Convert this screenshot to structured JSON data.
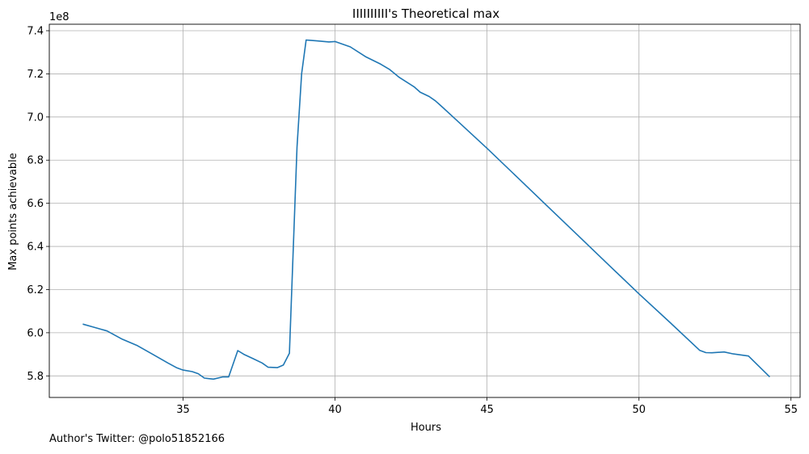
{
  "chart_data": {
    "type": "line",
    "title": "IIIIIIIIII's Theoretical max",
    "xlabel": "Hours",
    "ylabel": "Max points achievable",
    "y_offset_label": "1e8",
    "xlim": [
      30.6,
      55.3
    ],
    "ylim": [
      5.7,
      7.43
    ],
    "xticks": [
      35,
      40,
      45,
      50,
      55
    ],
    "yticks": [
      5.8,
      6.0,
      6.2,
      6.4,
      6.6,
      6.8,
      7.0,
      7.2,
      7.4
    ],
    "xtick_labels": [
      "35",
      "40",
      "45",
      "50",
      "55"
    ],
    "ytick_labels": [
      "5.8",
      "6.0",
      "6.2",
      "6.4",
      "6.6",
      "6.8",
      "7.0",
      "7.2",
      "7.4"
    ],
    "grid": true,
    "color": "#1f77b4",
    "series": [
      {
        "x": [
          31.7,
          32.0,
          32.2,
          32.5,
          33.0,
          33.5,
          34.0,
          34.5,
          34.8,
          35.0,
          35.3,
          35.5,
          35.7,
          36.0,
          36.3,
          36.5,
          36.8,
          37.0,
          37.3,
          37.6,
          37.8,
          38.1,
          38.3,
          38.5,
          38.75,
          38.9,
          39.05,
          39.4,
          39.8,
          40.0,
          40.5,
          41.0,
          41.5,
          41.8,
          42.1,
          42.6,
          42.8,
          43.1,
          43.3,
          43.5,
          44.0,
          45.0,
          46.0,
          47.0,
          48.0,
          49.0,
          50.0,
          51.0,
          52.0,
          52.2,
          52.4,
          52.8,
          53.1,
          53.6,
          54.3
        ],
        "y": [
          6.04,
          6.028,
          6.02,
          6.008,
          5.97,
          5.94,
          5.9,
          5.86,
          5.837,
          5.827,
          5.82,
          5.81,
          5.79,
          5.785,
          5.795,
          5.795,
          5.917,
          5.9,
          5.88,
          5.86,
          5.84,
          5.838,
          5.85,
          5.905,
          6.86,
          7.2,
          7.357,
          7.353,
          7.348,
          7.35,
          7.325,
          7.28,
          7.245,
          7.22,
          7.185,
          7.14,
          7.115,
          7.095,
          7.075,
          7.05,
          6.985,
          6.855,
          6.72,
          6.585,
          6.45,
          6.315,
          6.18,
          6.05,
          5.918,
          5.908,
          5.907,
          5.911,
          5.902,
          5.892,
          5.795
        ]
      }
    ]
  },
  "footer": {
    "credit": "Author's Twitter: @polo51852166"
  }
}
